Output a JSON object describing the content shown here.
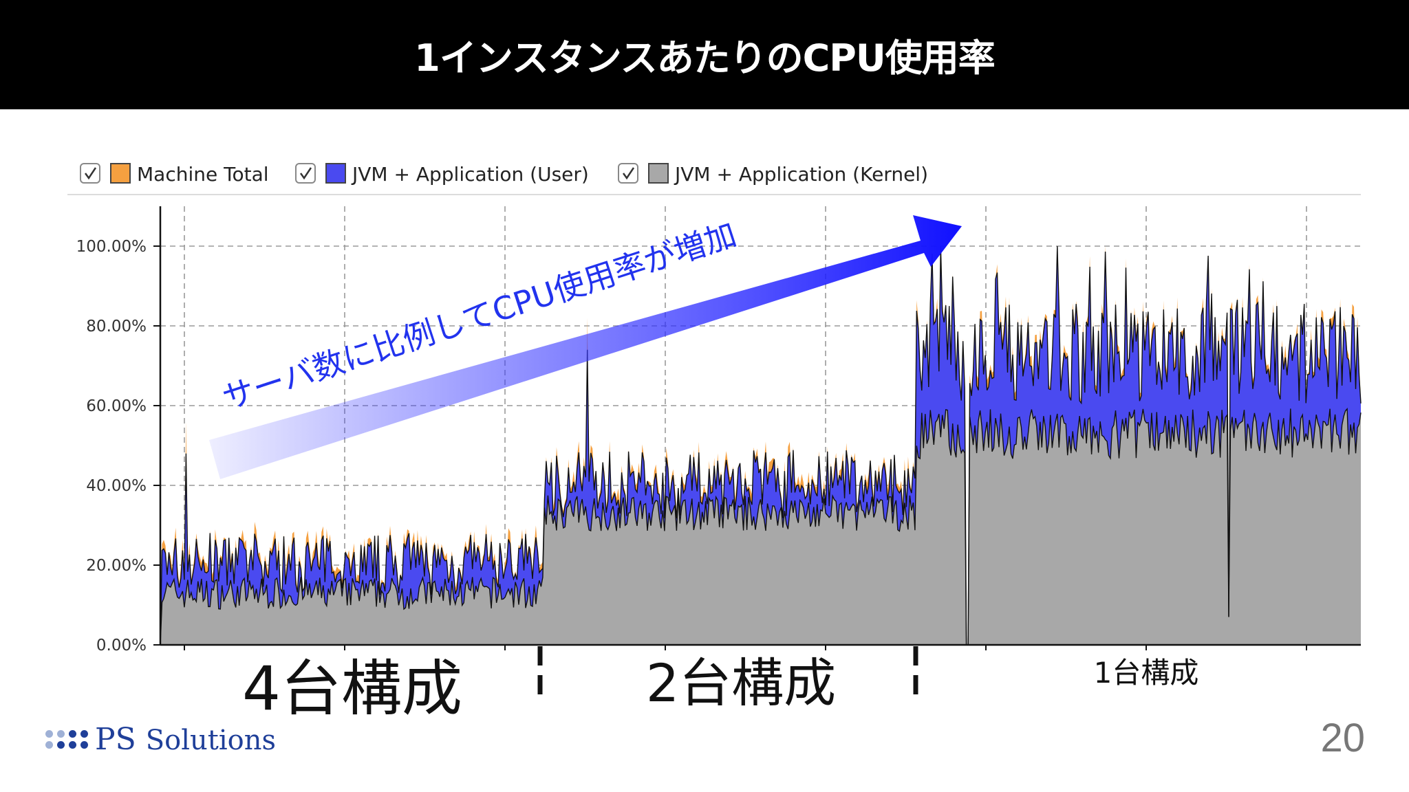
{
  "slide": {
    "title": "1インスタンスあたりのCPU使用率",
    "page_number": "20"
  },
  "logo": {
    "mark": "PS",
    "text": "Solutions",
    "color": "#1f3f99"
  },
  "annotation": {
    "text": "サーバ数に比例してCPU使用率が増加",
    "color": "#2233ee"
  },
  "segments": [
    {
      "label": "4台構成"
    },
    {
      "label": "2台構成"
    },
    {
      "label": "1台構成"
    }
  ],
  "chart_data": {
    "type": "area",
    "stacked": true,
    "ylim": [
      0,
      100
    ],
    "y_ticks": [
      "0.00%",
      "20.00%",
      "40.00%",
      "60.00%",
      "80.00%",
      "100.00%"
    ],
    "grid": true,
    "legend_position": "top-left",
    "legend": [
      {
        "name": "Machine Total",
        "color": "#f5a040",
        "checked": true
      },
      {
        "name": "JVM + Application (User)",
        "color": "#4a4af0",
        "checked": true
      },
      {
        "name": "JVM + Application (Kernel)",
        "color": "#a8a8a8",
        "checked": true
      }
    ],
    "series": [
      {
        "name": "JVM + Application (Kernel)",
        "segment_means": [
          13,
          33,
          53
        ],
        "note_level": "approx"
      },
      {
        "name": "JVM + Application (User)",
        "segment_means": [
          20,
          40,
          73
        ]
      },
      {
        "name": "Machine Total",
        "segment_means": [
          22,
          42,
          76
        ]
      }
    ],
    "segments": [
      {
        "label": "4台構成",
        "x_range": [
          0,
          0.32
        ]
      },
      {
        "label": "2台構成",
        "x_range": [
          0.32,
          0.63
        ]
      },
      {
        "label": "1台構成",
        "x_range": [
          0.63,
          1.0
        ]
      }
    ],
    "dips": [
      {
        "x": 0.0,
        "y": 0
      },
      {
        "x": 0.672,
        "y": 0
      },
      {
        "x": 0.89,
        "y": 7
      }
    ],
    "spikes": [
      {
        "x": 0.022,
        "y": 56
      },
      {
        "x": 0.356,
        "y": 82
      }
    ]
  }
}
